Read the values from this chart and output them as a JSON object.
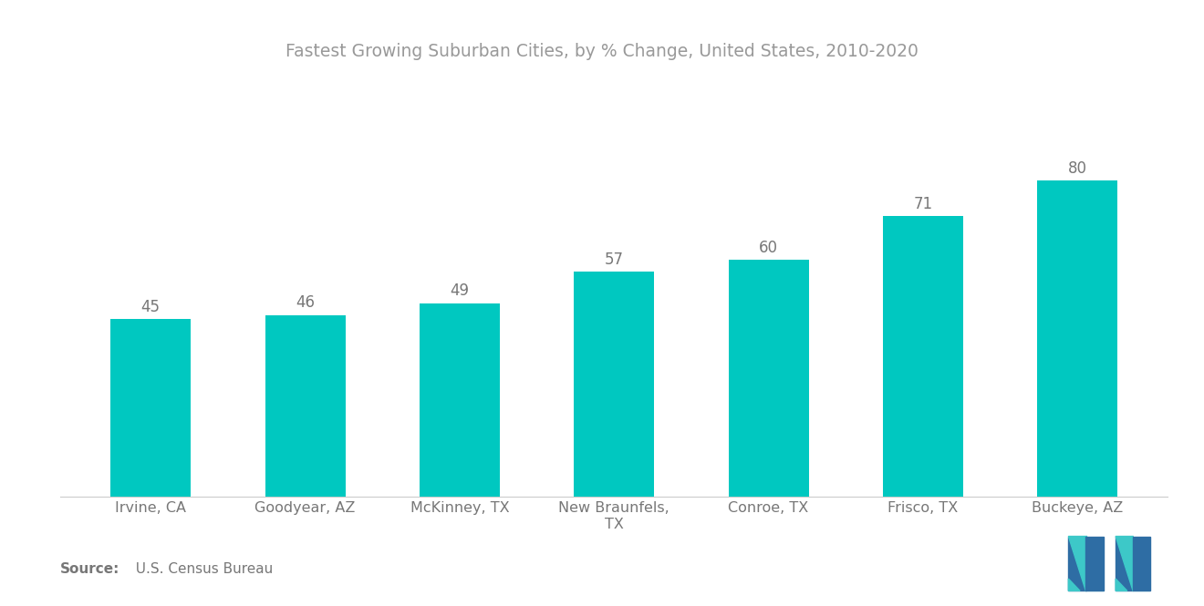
{
  "title": "Fastest Growing Suburban Cities, by % Change, United States, 2010-2020",
  "categories": [
    "Irvine, CA",
    "Goodyear, AZ",
    "McKinney, TX",
    "New Braunfels,\nTX",
    "Conroe, TX",
    "Frisco, TX",
    "Buckeye, AZ"
  ],
  "values": [
    45,
    46,
    49,
    57,
    60,
    71,
    80
  ],
  "bar_color": "#00C8C0",
  "background_color": "#ffffff",
  "title_color": "#999999",
  "label_color": "#777777",
  "source_bold": "Source:",
  "source_regular": "  U.S. Census Bureau",
  "title_fontsize": 13.5,
  "value_fontsize": 12,
  "tick_fontsize": 11.5,
  "source_fontsize": 11,
  "bar_width": 0.52,
  "ylim": [
    0,
    95
  ],
  "logo_blue": "#2E6DA4",
  "logo_teal": "#3DC8C8"
}
